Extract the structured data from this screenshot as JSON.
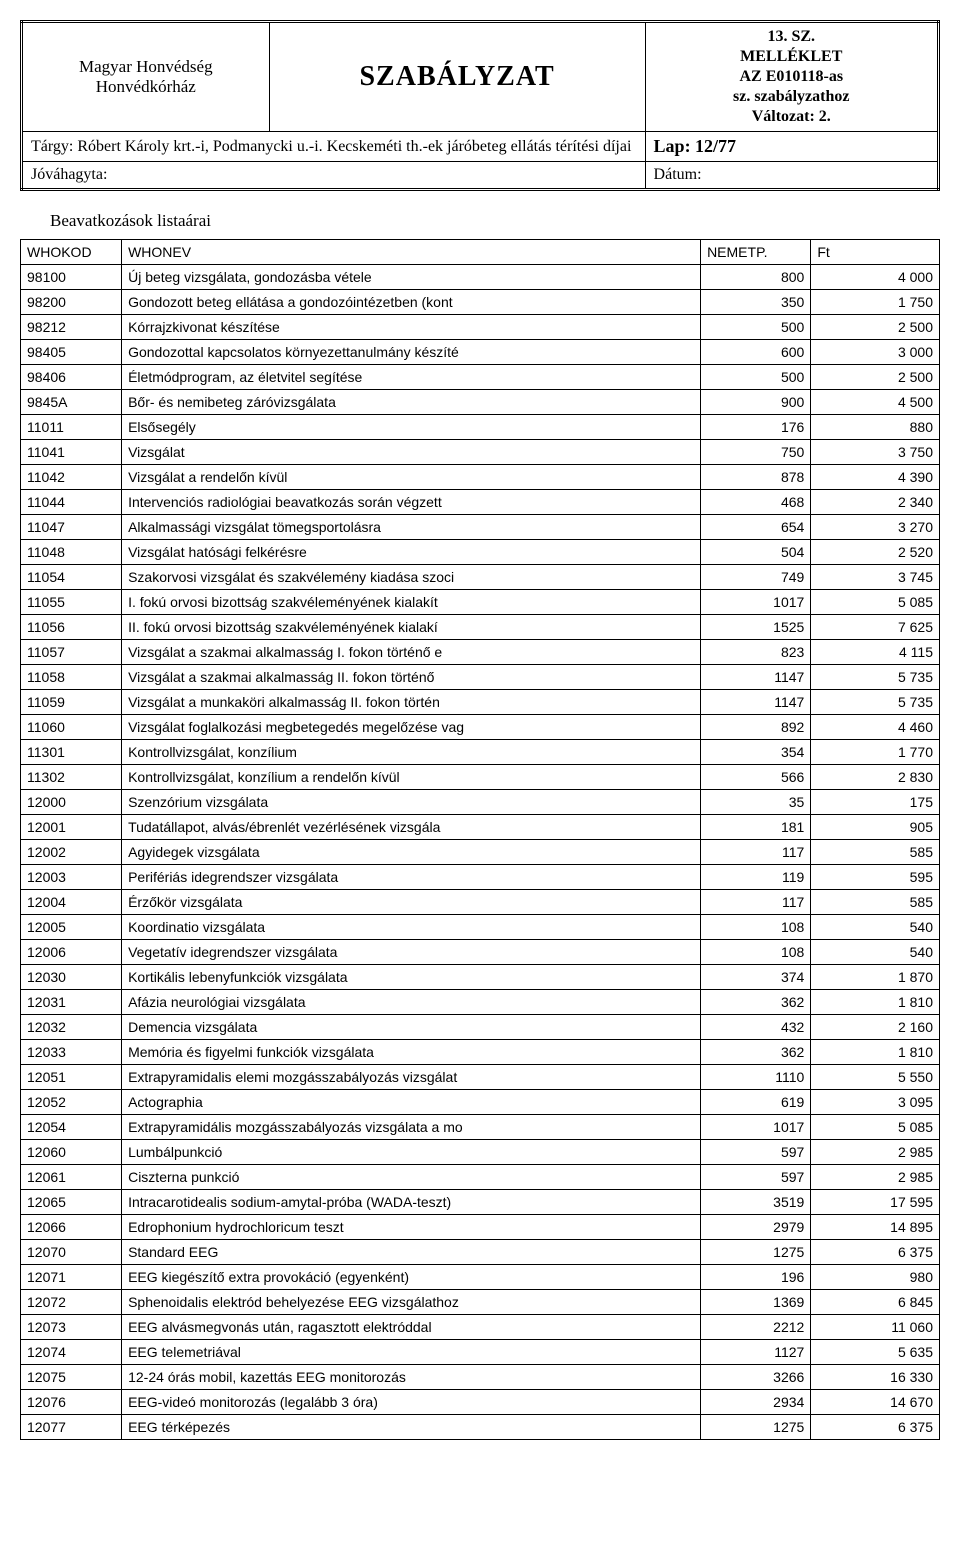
{
  "header": {
    "org_line1": "Magyar Honvédség",
    "org_line2": "Honvédkórház",
    "title": "SZABÁLYZAT",
    "appendix_line1": "13. SZ.",
    "appendix_line2": "MELLÉKLET",
    "appendix_line3": "AZ E010118-as",
    "appendix_line4": "sz. szabályzathoz",
    "appendix_line5": "Változat: 2.",
    "subject_label": "Tárgy: Róbert Károly krt.-i, Podmanycki u.-i. Kecskeméti th.-ek járóbeteg ellátás térítési díjai",
    "page_label": "Lap: 12/77",
    "approved_label": "Jóváhagyta:",
    "date_label": "Dátum:"
  },
  "list_title": "Beavatkozások listaárai",
  "columns": {
    "code": "WHOKOD",
    "name": "WHONEV",
    "net": "NEMETP.",
    "ft": "Ft"
  },
  "rows": [
    {
      "code": "98100",
      "name": "Új beteg vizsgálata, gondozásba vétele",
      "net": "800",
      "ft": "4 000"
    },
    {
      "code": "98200",
      "name": "Gondozott beteg ellátása a gondozóintézetben (kont",
      "net": "350",
      "ft": "1 750"
    },
    {
      "code": "98212",
      "name": "Kórrajzkivonat készítése",
      "net": "500",
      "ft": "2 500"
    },
    {
      "code": "98405",
      "name": "Gondozottal kapcsolatos környezettanulmány készíté",
      "net": "600",
      "ft": "3 000"
    },
    {
      "code": "98406",
      "name": "Életmódprogram, az életvitel segítése",
      "net": "500",
      "ft": "2 500"
    },
    {
      "code": "9845A",
      "name": "Bőr- és nemibeteg záróvizsgálata",
      "net": "900",
      "ft": "4 500"
    },
    {
      "code": "11011",
      "name": "Elsősegély",
      "net": "176",
      "ft": "880"
    },
    {
      "code": "11041",
      "name": "Vizsgálat",
      "net": "750",
      "ft": "3 750"
    },
    {
      "code": "11042",
      "name": "Vizsgálat a rendelőn kívül",
      "net": "878",
      "ft": "4 390"
    },
    {
      "code": "11044",
      "name": "Intervenciós radiológiai beavatkozás során végzett",
      "net": "468",
      "ft": "2 340"
    },
    {
      "code": "11047",
      "name": "Alkalmassági vizsgálat tömegsportolásra",
      "net": "654",
      "ft": "3 270"
    },
    {
      "code": "11048",
      "name": "Vizsgálat hatósági felkérésre",
      "net": "504",
      "ft": "2 520"
    },
    {
      "code": "11054",
      "name": "Szakorvosi vizsgálat és szakvélemény kiadása szoci",
      "net": "749",
      "ft": "3 745"
    },
    {
      "code": "11055",
      "name": "I. fokú orvosi bizottság szakvéleményének kialakít",
      "net": "1017",
      "ft": "5 085"
    },
    {
      "code": "11056",
      "name": "II. fokú orvosi bizottság szakvéleményének kialakí",
      "net": "1525",
      "ft": "7 625"
    },
    {
      "code": "11057",
      "name": "Vizsgálat a szakmai alkalmasság I. fokon történő e",
      "net": "823",
      "ft": "4 115"
    },
    {
      "code": "11058",
      "name": "Vizsgálat a szakmai alkalmasság II. fokon történő",
      "net": "1147",
      "ft": "5 735"
    },
    {
      "code": "11059",
      "name": "Vizsgálat a munkaköri alkalmasság II. fokon történ",
      "net": "1147",
      "ft": "5 735"
    },
    {
      "code": "11060",
      "name": "Vizsgálat foglalkozási megbetegedés megelőzése vag",
      "net": "892",
      "ft": "4 460"
    },
    {
      "code": "11301",
      "name": "Kontrollvizsgálat, konzílium",
      "net": "354",
      "ft": "1 770"
    },
    {
      "code": "11302",
      "name": "Kontrollvizsgálat, konzílium a rendelőn kívül",
      "net": "566",
      "ft": "2 830"
    },
    {
      "code": "12000",
      "name": "Szenzórium vizsgálata",
      "net": "35",
      "ft": "175"
    },
    {
      "code": "12001",
      "name": "Tudatállapot, alvás/ébrenlét vezérlésének vizsgála",
      "net": "181",
      "ft": "905"
    },
    {
      "code": "12002",
      "name": "Agyidegek vizsgálata",
      "net": "117",
      "ft": "585"
    },
    {
      "code": "12003",
      "name": "Perifériás idegrendszer vizsgálata",
      "net": "119",
      "ft": "595"
    },
    {
      "code": "12004",
      "name": "Érzőkör vizsgálata",
      "net": "117",
      "ft": "585"
    },
    {
      "code": "12005",
      "name": "Koordinatio vizsgálata",
      "net": "108",
      "ft": "540"
    },
    {
      "code": "12006",
      "name": "Vegetatív idegrendszer vizsgálata",
      "net": "108",
      "ft": "540"
    },
    {
      "code": "12030",
      "name": "Kortikális lebenyfunkciók vizsgálata",
      "net": "374",
      "ft": "1 870"
    },
    {
      "code": "12031",
      "name": "Afázia neurológiai vizsgálata",
      "net": "362",
      "ft": "1 810"
    },
    {
      "code": "12032",
      "name": "Demencia vizsgálata",
      "net": "432",
      "ft": "2 160"
    },
    {
      "code": "12033",
      "name": "Memória és figyelmi funkciók vizsgálata",
      "net": "362",
      "ft": "1 810"
    },
    {
      "code": "12051",
      "name": "Extrapyramidalis elemi mozgásszabályozás vizsgálat",
      "net": "1110",
      "ft": "5 550"
    },
    {
      "code": "12052",
      "name": "Actographia",
      "net": "619",
      "ft": "3 095"
    },
    {
      "code": "12054",
      "name": "Extrapyramidális mozgásszabályozás vizsgálata a mo",
      "net": "1017",
      "ft": "5 085"
    },
    {
      "code": "12060",
      "name": "Lumbálpunkció",
      "net": "597",
      "ft": "2 985"
    },
    {
      "code": "12061",
      "name": "Ciszterna punkció",
      "net": "597",
      "ft": "2 985"
    },
    {
      "code": "12065",
      "name": "Intracarotidealis sodium-amytal-próba (WADA-teszt)",
      "net": "3519",
      "ft": "17 595"
    },
    {
      "code": "12066",
      "name": "Edrophonium hydrochloricum teszt",
      "net": "2979",
      "ft": "14 895"
    },
    {
      "code": "12070",
      "name": "Standard EEG",
      "net": "1275",
      "ft": "6 375"
    },
    {
      "code": "12071",
      "name": "EEG kiegészítő extra provokáció (egyenként)",
      "net": "196",
      "ft": "980"
    },
    {
      "code": "12072",
      "name": "Sphenoidalis elektród behelyezése EEG vizsgálathoz",
      "net": "1369",
      "ft": "6 845"
    },
    {
      "code": "12073",
      "name": "EEG alvásmegvonás után, ragasztott elektróddal",
      "net": "2212",
      "ft": "11 060"
    },
    {
      "code": "12074",
      "name": "EEG telemetriával",
      "net": "1127",
      "ft": "5 635"
    },
    {
      "code": "12075",
      "name": "12-24 órás mobil, kazettás EEG monitorozás",
      "net": "3266",
      "ft": "16 330"
    },
    {
      "code": "12076",
      "name": "EEG-videó monitorozás (legalább 3 óra)",
      "net": "2934",
      "ft": "14 670"
    },
    {
      "code": "12077",
      "name": "EEG térképezés",
      "net": "1275",
      "ft": "6 375"
    }
  ]
}
